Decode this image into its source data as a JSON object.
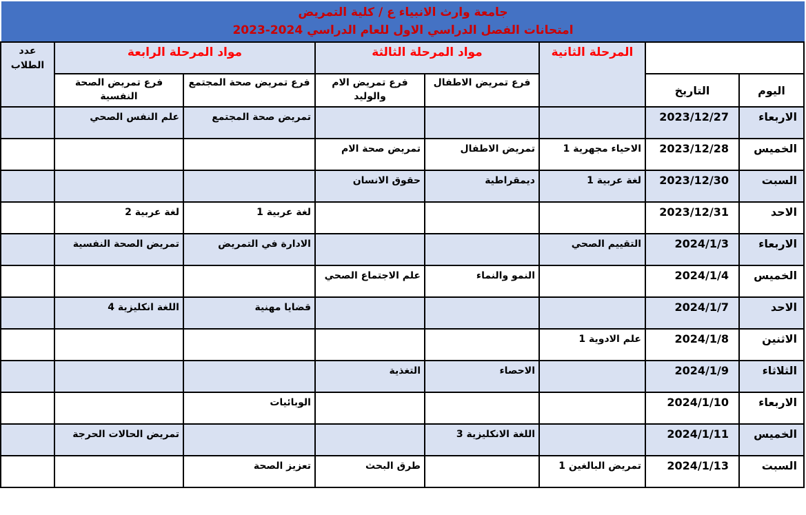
{
  "title": {
    "line1": "جامعة وارث الانبياء ع / كلية التمريض",
    "line2": "امتحانات الفصل الدراسي الاول للعام الدراسي 2024-2023"
  },
  "header": {
    "day": "اليوم",
    "date": "التاريخ",
    "stage2": "المرحلة الثانية",
    "stage3": "مواد المرحلة الثالثة",
    "stage4": "مواد المرحلة الرابعة",
    "students_count": "عدد الطلاب",
    "branch_peds": "فرع تمريض الاطفال",
    "branch_maternal": "فرع تمريض الام والوليد",
    "branch_community": "فرع تمريض صحة المجتمع",
    "branch_psych": "فرع تمريض الصحة النفسية"
  },
  "colors": {
    "title_bar_bg": "#4472C4",
    "title_text": "#CC0000",
    "section_header_text": "#FF0000",
    "row_stripe": "#D9E1F2",
    "border": "#000000"
  },
  "rows": [
    {
      "day": "الاربعاء",
      "date": "2023/12/27",
      "stage2": "",
      "peds": "",
      "maternal": "",
      "community": "تمريض صحة المجتمع",
      "psych": "علم النفس الصحي",
      "count": ""
    },
    {
      "day": "الخميس",
      "date": "2023/12/28",
      "stage2": "الاحياء مجهرية 1",
      "peds": "تمريض الاطفال",
      "maternal": "تمريض صحة الام",
      "community": "",
      "psych": "",
      "count": ""
    },
    {
      "day": "السبت",
      "date": "2023/12/30",
      "stage2": "لغة عربية 1",
      "peds": "ديمقراطية",
      "maternal": "حقوق الانسان",
      "community": "",
      "psych": "",
      "count": ""
    },
    {
      "day": "الاحد",
      "date": "2023/12/31",
      "stage2": "",
      "peds": "",
      "maternal": "",
      "community": "لغة عربية 1",
      "psych": "لغة عربية 2",
      "count": ""
    },
    {
      "day": "الاربعاء",
      "date": "2024/1/3",
      "stage2": "التقييم الصحي",
      "peds": "",
      "maternal": "",
      "community": "الادارة في التمريض",
      "psych": "تمريض الصحة النفسية",
      "count": ""
    },
    {
      "day": "الخميس",
      "date": "2024/1/4",
      "stage2": "",
      "peds": "النمو والنماء",
      "maternal": "علم الاجتماع الصحي",
      "community": "",
      "psych": "",
      "count": ""
    },
    {
      "day": "الاحد",
      "date": "2024/1/7",
      "stage2": "",
      "peds": "",
      "maternal": "",
      "community": "قضايا مهنية",
      "psych": "اللغة انكليزية 4",
      "count": ""
    },
    {
      "day": "الاثنين",
      "date": "2024/1/8",
      "stage2": "علم الادوية 1",
      "peds": "",
      "maternal": "",
      "community": "",
      "psych": "",
      "count": ""
    },
    {
      "day": "الثلاثاء",
      "date": "2024/1/9",
      "stage2": "",
      "peds": "الاحصاء",
      "maternal": "التغذية",
      "community": "",
      "psych": "",
      "count": ""
    },
    {
      "day": "الاربعاء",
      "date": "2024/1/10",
      "stage2": "",
      "peds": "",
      "maternal": "",
      "community": "الوبائيات",
      "psych": "",
      "count": ""
    },
    {
      "day": "الخميس",
      "date": "2024/1/11",
      "stage2": "",
      "peds": "اللغة الانكليزية 3",
      "maternal": "",
      "community": "",
      "psych": "تمريض الحالات الحرجة",
      "count": ""
    },
    {
      "day": "السبت",
      "date": "2024/1/13",
      "stage2": "تمريض البالغين 1",
      "peds": "",
      "maternal": "طرق البحث",
      "community": "تعزيز الصحة",
      "psych": "",
      "count": ""
    }
  ]
}
